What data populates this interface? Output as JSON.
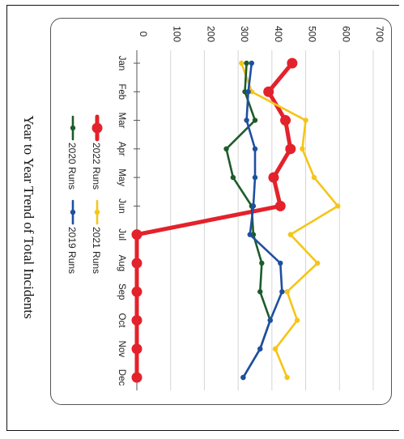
{
  "chart_data": {
    "type": "line",
    "title": "Year to Year Trend of Total Incidents",
    "categories": [
      "Jan",
      "Feb",
      "Mar",
      "Apr",
      "May",
      "Jun",
      "Jul",
      "Aug",
      "Sep",
      "Oct",
      "Nov",
      "Dec"
    ],
    "ylim": [
      0,
      700
    ],
    "yticks": [
      0,
      100,
      200,
      300,
      400,
      500,
      600,
      700
    ],
    "grid": true,
    "legend_position": "bottom",
    "orientation": "rotated-90-clockwise",
    "series": [
      {
        "name": "2022 Runs",
        "color": "#e3222b",
        "values": [
          460,
          390,
          440,
          455,
          405,
          425,
          0,
          0,
          0,
          0,
          0,
          0
        ]
      },
      {
        "name": "2021 Runs",
        "color": "#f5c518",
        "values": [
          310,
          340,
          500,
          490,
          525,
          595,
          455,
          535,
          445,
          475,
          410,
          445
        ]
      },
      {
        "name": "2020 Runs",
        "color": "#1d5c2a",
        "values": [
          325,
          320,
          350,
          265,
          285,
          340,
          345,
          370,
          365,
          395,
          365,
          315
        ]
      },
      {
        "name": "2019 Runs",
        "color": "#1f4fa0",
        "values": [
          340,
          330,
          325,
          350,
          350,
          345,
          335,
          425,
          430,
          395,
          365,
          315
        ]
      }
    ]
  }
}
